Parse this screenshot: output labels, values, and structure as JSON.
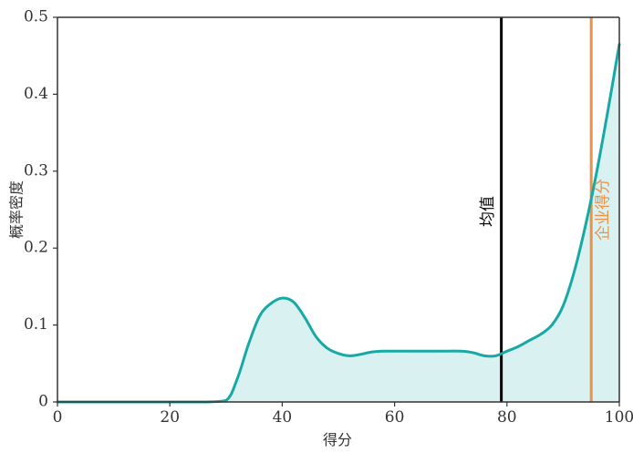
{
  "chart_data": {
    "type": "area",
    "title": "",
    "xlabel": "得分",
    "ylabel": "概率密度",
    "xlim": [
      0,
      100
    ],
    "ylim": [
      0,
      0.5
    ],
    "xticks": [
      0,
      20,
      40,
      60,
      80,
      100
    ],
    "yticks": [
      0,
      0.1,
      0.2,
      0.3,
      0.4,
      0.5
    ],
    "xtick_labels": [
      "0",
      "20",
      "40",
      "60",
      "80",
      "100"
    ],
    "ytick_labels": [
      "0",
      "0.1",
      "0.2",
      "0.3",
      "0.4",
      "0.5"
    ],
    "grid": false,
    "colors": {
      "curve": "#17a9a5",
      "fill": "#d9f1f1",
      "axis": "#333333",
      "mean_line": "#000000",
      "company_line": "#e8924a"
    },
    "density_series": {
      "x": [
        0,
        10,
        20,
        26,
        30,
        32,
        34,
        36,
        38,
        40,
        42,
        44,
        46,
        48,
        50,
        52,
        54,
        56,
        58,
        60,
        64,
        68,
        72,
        74,
        76,
        78,
        80,
        82,
        84,
        86,
        88,
        90,
        92,
        94,
        96,
        98,
        100
      ],
      "y": [
        0,
        0,
        0,
        0,
        0.002,
        0.03,
        0.075,
        0.112,
        0.128,
        0.135,
        0.13,
        0.11,
        0.085,
        0.07,
        0.063,
        0.06,
        0.062,
        0.065,
        0.066,
        0.066,
        0.066,
        0.066,
        0.066,
        0.064,
        0.06,
        0.06,
        0.066,
        0.072,
        0.08,
        0.088,
        0.1,
        0.125,
        0.17,
        0.23,
        0.3,
        0.38,
        0.465
      ]
    },
    "markers": [
      {
        "label": "均值",
        "x": 79,
        "color": "#000000"
      },
      {
        "label": "企业得分",
        "x": 95,
        "color": "#e8924a"
      }
    ]
  }
}
